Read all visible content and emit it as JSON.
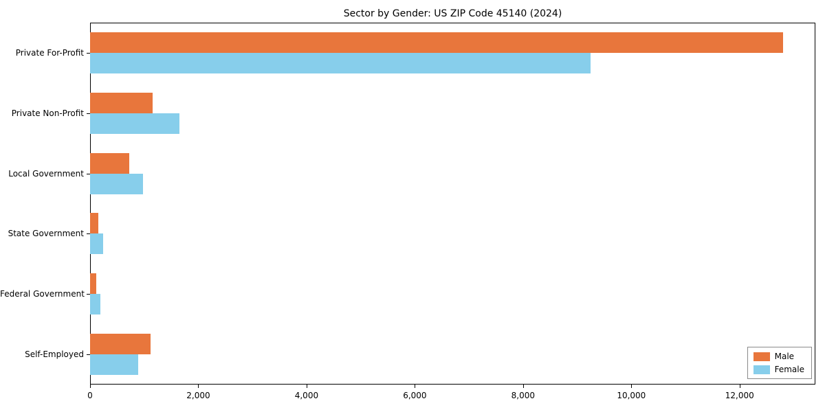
{
  "chart_data": {
    "type": "bar",
    "orientation": "horizontal",
    "title": "Sector by Gender: US ZIP Code 45140 (2024)",
    "categories": [
      "Private For-Profit",
      "Private Non-Profit",
      "Local Government",
      "State Government",
      "Federal Government",
      "Self-Employed"
    ],
    "series": [
      {
        "name": "Male",
        "color": "#e8763c",
        "values": [
          12800,
          1150,
          730,
          150,
          120,
          1120
        ]
      },
      {
        "name": "Female",
        "color": "#87ceeb",
        "values": [
          9250,
          1650,
          980,
          240,
          190,
          890
        ]
      }
    ],
    "xlim": [
      0,
      13400
    ],
    "x_ticks": [
      0,
      2000,
      4000,
      6000,
      8000,
      10000,
      12000
    ],
    "x_tick_labels": [
      "0",
      "2,000",
      "4,000",
      "6,000",
      "8,000",
      "10,000",
      "12,000"
    ],
    "xlabel": "",
    "ylabel": "",
    "grid": false,
    "legend_position": "lower right",
    "background_color": "#ffffff",
    "spine_color": "#000000"
  }
}
